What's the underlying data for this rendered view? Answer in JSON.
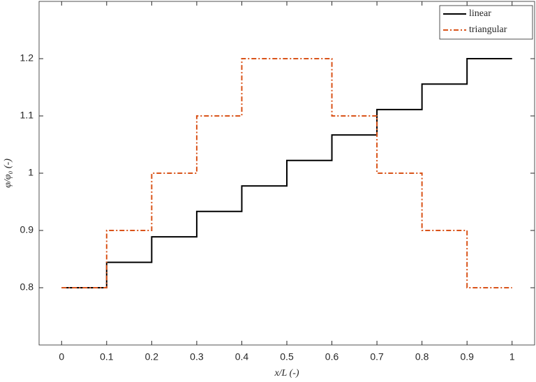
{
  "chart_data": {
    "type": "line",
    "xlabel": "x/L (-)",
    "ylabel": "φ/φ₀ (-)",
    "x": [
      0,
      0.1,
      0.1,
      0.2,
      0.2,
      0.3,
      0.3,
      0.4,
      0.4,
      0.5,
      0.5,
      0.6,
      0.6,
      0.7,
      0.7,
      0.8,
      0.8,
      0.9,
      0.9,
      1
    ],
    "series": [
      {
        "name": "linear",
        "color": "#000000",
        "dash": "solid",
        "values": [
          0.8,
          0.8,
          0.8444,
          0.8444,
          0.8889,
          0.8889,
          0.9333,
          0.9333,
          0.9778,
          0.9778,
          1.0222,
          1.0222,
          1.0667,
          1.0667,
          1.1111,
          1.1111,
          1.1556,
          1.1556,
          1.2,
          1.2
        ]
      },
      {
        "name": "triangular",
        "color": "#d95319",
        "dash": "dashdot",
        "values": [
          0.8,
          0.8,
          0.9,
          0.9,
          1.0,
          1.0,
          1.1,
          1.1,
          1.2,
          1.2,
          1.2,
          1.2,
          1.1,
          1.1,
          1.0,
          1.0,
          0.9,
          0.9,
          0.8,
          0.8
        ]
      }
    ],
    "xlim": [
      -0.05,
      1.05
    ],
    "ylim": [
      0.7,
      1.3
    ],
    "xticks": [
      0,
      0.1,
      0.2,
      0.3,
      0.4,
      0.5,
      0.6,
      0.7,
      0.8,
      0.9,
      1
    ],
    "yticks": [
      0.8,
      0.9,
      1,
      1.1,
      1.2
    ],
    "legend": "upper right"
  }
}
